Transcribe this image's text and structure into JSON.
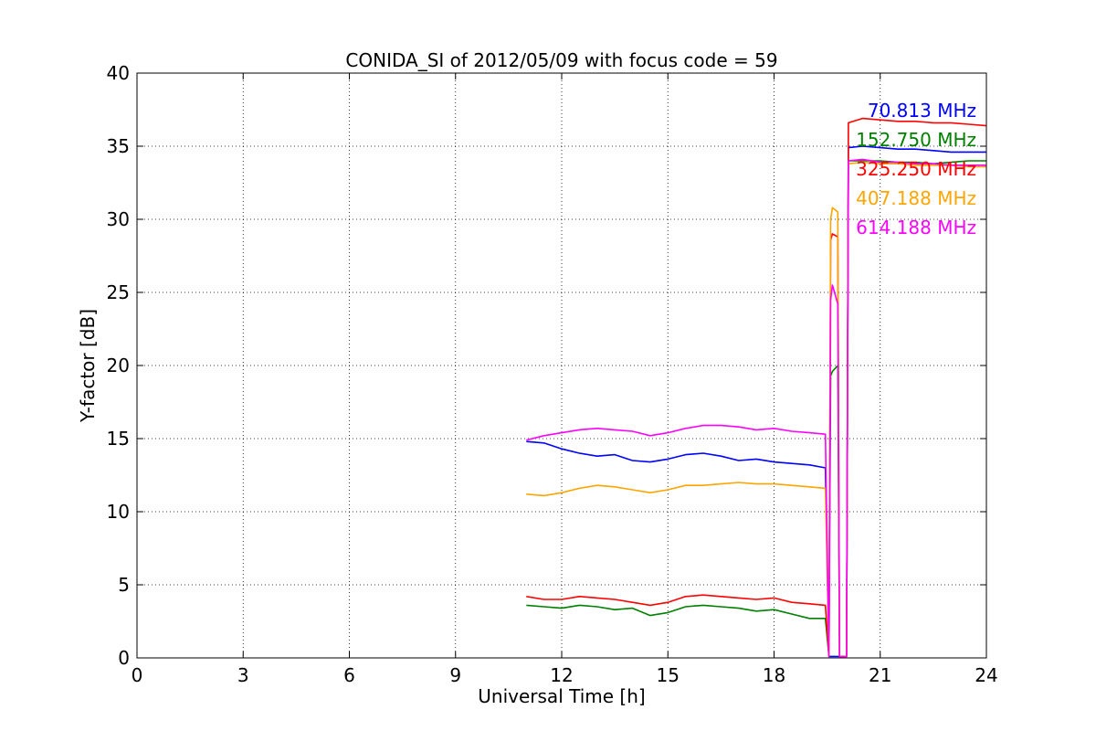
{
  "chart_data": {
    "type": "line",
    "title": "CONIDA_SI of 2012/05/09 with focus code = 59",
    "xlabel": "Universal Time [h]",
    "ylabel": "Y-factor [dB]",
    "xlim": [
      0,
      24
    ],
    "ylim": [
      0,
      40
    ],
    "xticks": [
      0,
      3,
      6,
      9,
      12,
      15,
      18,
      21,
      24
    ],
    "yticks": [
      0,
      5,
      10,
      15,
      20,
      25,
      30,
      35,
      40
    ],
    "xtick_labels": [
      "0",
      "3",
      "6",
      "9",
      "12",
      "15",
      "18",
      "21",
      "24"
    ],
    "ytick_labels": [
      "0",
      "5",
      "10",
      "15",
      "20",
      "25",
      "30",
      "35",
      "40"
    ],
    "grid": true,
    "legend_placement": "top-right",
    "series": [
      {
        "name": "70.813 MHz",
        "color": "#0000ff",
        "x": [
          11.0,
          11.5,
          12.0,
          12.5,
          13.0,
          13.5,
          14.0,
          14.5,
          15.0,
          15.5,
          16.0,
          16.5,
          17.0,
          17.5,
          18.0,
          18.5,
          19.0,
          19.45,
          19.55,
          19.6,
          19.75,
          19.85,
          19.9,
          20.05,
          20.1,
          20.5,
          21.0,
          21.5,
          22.0,
          22.5,
          23.0,
          23.5,
          24.0
        ],
        "y": [
          14.8,
          14.7,
          14.3,
          14.0,
          13.8,
          13.9,
          13.5,
          13.4,
          13.6,
          13.9,
          14.0,
          13.8,
          13.5,
          13.6,
          13.4,
          13.3,
          13.2,
          13.0,
          0.1,
          0.1,
          0.1,
          0.1,
          0.1,
          0.1,
          34.9,
          35.0,
          34.9,
          34.8,
          34.8,
          34.7,
          34.6,
          34.6,
          34.6
        ]
      },
      {
        "name": "152.750 MHz",
        "color": "#008000",
        "x": [
          11.0,
          11.5,
          12.0,
          12.5,
          13.0,
          13.5,
          14.0,
          14.5,
          15.0,
          15.5,
          16.0,
          16.5,
          17.0,
          17.5,
          18.0,
          18.5,
          19.0,
          19.45,
          19.55,
          19.6,
          19.65,
          19.8,
          19.85,
          20.05,
          20.1,
          20.5,
          21.0,
          21.5,
          22.0,
          22.5,
          23.0,
          23.5,
          24.0
        ],
        "y": [
          3.6,
          3.5,
          3.4,
          3.6,
          3.5,
          3.3,
          3.4,
          2.9,
          3.1,
          3.5,
          3.6,
          3.5,
          3.4,
          3.2,
          3.3,
          3.0,
          2.7,
          2.7,
          0.1,
          19.3,
          19.6,
          20.0,
          0.1,
          0.1,
          34.0,
          34.0,
          34.0,
          33.9,
          33.9,
          33.8,
          33.9,
          34.0,
          34.0
        ]
      },
      {
        "name": "325.250 MHz",
        "color": "#ff0000",
        "x": [
          11.0,
          11.5,
          12.0,
          12.5,
          13.0,
          13.5,
          14.0,
          14.5,
          15.0,
          15.5,
          16.0,
          16.5,
          17.0,
          17.5,
          18.0,
          18.5,
          19.0,
          19.45,
          19.55,
          19.6,
          19.65,
          19.8,
          19.85,
          20.05,
          20.1,
          20.5,
          21.0,
          21.5,
          22.0,
          22.5,
          23.0,
          23.5,
          24.0
        ],
        "y": [
          4.2,
          4.0,
          4.0,
          4.2,
          4.1,
          4.0,
          3.8,
          3.6,
          3.8,
          4.2,
          4.3,
          4.2,
          4.1,
          4.0,
          4.1,
          3.8,
          3.7,
          3.6,
          0.1,
          28.6,
          29.0,
          28.8,
          0.1,
          0.1,
          36.6,
          36.9,
          36.8,
          36.7,
          36.7,
          36.6,
          36.6,
          36.5,
          36.4
        ]
      },
      {
        "name": "407.188 MHz",
        "color": "#ffa500",
        "x": [
          11.0,
          11.5,
          12.0,
          12.5,
          13.0,
          13.5,
          14.0,
          14.5,
          15.0,
          15.5,
          16.0,
          16.5,
          17.0,
          17.5,
          18.0,
          18.5,
          19.0,
          19.45,
          19.55,
          19.6,
          19.65,
          19.8,
          19.85,
          20.05,
          20.1,
          20.5,
          21.0,
          21.5,
          22.0,
          22.5,
          23.0,
          23.5,
          24.0
        ],
        "y": [
          11.2,
          11.1,
          11.3,
          11.6,
          11.8,
          11.7,
          11.5,
          11.3,
          11.5,
          11.8,
          11.8,
          11.9,
          12.0,
          11.9,
          11.9,
          11.8,
          11.7,
          11.6,
          0.1,
          30.0,
          30.8,
          30.5,
          0.1,
          0.1,
          33.8,
          33.9,
          33.8,
          33.8,
          33.7,
          33.7,
          33.7,
          33.6,
          33.6
        ]
      },
      {
        "name": "614.188 MHz",
        "color": "#ff00ff",
        "x": [
          11.0,
          11.5,
          12.0,
          12.5,
          13.0,
          13.5,
          14.0,
          14.5,
          15.0,
          15.5,
          16.0,
          16.5,
          17.0,
          17.5,
          18.0,
          18.5,
          19.0,
          19.45,
          19.55,
          19.6,
          19.65,
          19.8,
          19.85,
          20.05,
          20.1,
          20.5,
          21.0,
          21.5,
          22.0,
          22.5,
          23.0,
          23.5,
          24.0
        ],
        "y": [
          14.9,
          15.2,
          15.4,
          15.6,
          15.7,
          15.6,
          15.5,
          15.2,
          15.4,
          15.7,
          15.9,
          15.9,
          15.8,
          15.6,
          15.7,
          15.5,
          15.4,
          15.3,
          0.1,
          24.5,
          25.5,
          24.2,
          0.1,
          0.1,
          34.0,
          34.1,
          33.9,
          33.9,
          33.8,
          33.8,
          33.7,
          33.7,
          33.7
        ]
      }
    ]
  }
}
